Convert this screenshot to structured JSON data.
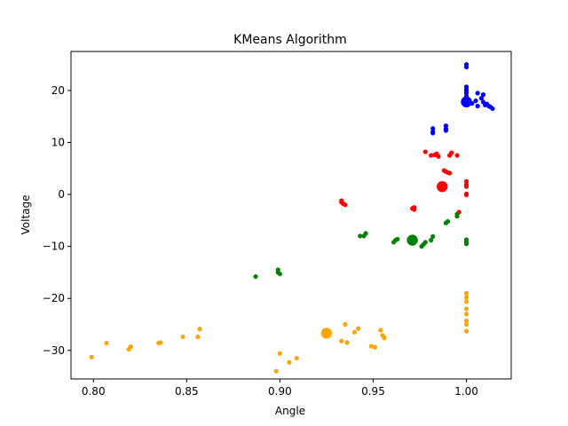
{
  "chart_data": {
    "type": "scatter",
    "title": "KMeans Algorithm",
    "xlabel": "Angle",
    "ylabel": "Voltage",
    "xlim": [
      0.788,
      1.024
    ],
    "ylim": [
      -35.5,
      27.5
    ],
    "xticks": [
      0.8,
      0.85,
      0.9,
      0.95,
      1.0
    ],
    "xtick_labels": [
      "0.80",
      "0.85",
      "0.90",
      "0.95",
      "1.00"
    ],
    "yticks": [
      -30,
      -20,
      -10,
      0,
      10,
      20
    ],
    "ytick_labels": [
      "−30",
      "−20",
      "−10",
      "0",
      "10",
      "20"
    ],
    "grid": false,
    "legend": "none",
    "series": [
      {
        "color": "#ff0000",
        "points": [
          [
            0.933,
            -1.5
          ],
          [
            0.934,
            -1.8
          ],
          [
            0.935,
            -2.0
          ],
          [
            0.933,
            -1.2
          ],
          [
            0.971,
            -2.7
          ],
          [
            0.972,
            -2.9
          ],
          [
            0.972,
            -2.5
          ],
          [
            0.978,
            8.2
          ],
          [
            0.981,
            7.5
          ],
          [
            0.983,
            7.6
          ],
          [
            0.984,
            7.8
          ],
          [
            0.985,
            7.3
          ],
          [
            0.988,
            4.6
          ],
          [
            0.989,
            4.4
          ],
          [
            0.99,
            4.2
          ],
          [
            0.991,
            7.5
          ],
          [
            0.992,
            8.0
          ],
          [
            0.991,
            4.1
          ],
          [
            0.995,
            7.5
          ],
          [
            0.996,
            -3.4
          ],
          [
            1.0,
            2.5
          ],
          [
            1.0,
            1.9
          ],
          [
            1.0,
            1.5
          ],
          [
            1.0,
            -0.1
          ],
          [
            1.0,
            0.1
          ]
        ],
        "centroid": [
          0.987,
          1.5
        ]
      },
      {
        "color": "#0000ff",
        "points": [
          [
            0.982,
            12.7
          ],
          [
            0.982,
            12.1
          ],
          [
            0.982,
            11.8
          ],
          [
            0.989,
            13.2
          ],
          [
            0.989,
            12.6
          ],
          [
            0.989,
            12.3
          ],
          [
            1.0,
            25.0
          ],
          [
            1.0,
            24.5
          ],
          [
            1.0,
            20.7
          ],
          [
            1.0,
            20.2
          ],
          [
            1.0,
            19.9
          ],
          [
            1.0,
            19.5
          ],
          [
            1.0,
            18.9
          ],
          [
            1.003,
            17.5
          ],
          [
            1.005,
            18.0
          ],
          [
            1.006,
            19.5
          ],
          [
            1.006,
            17.0
          ],
          [
            1.008,
            18.5
          ],
          [
            1.009,
            19.2
          ],
          [
            1.009,
            17.8
          ],
          [
            1.01,
            17.2
          ],
          [
            1.011,
            17.4
          ],
          [
            1.012,
            17.0
          ],
          [
            1.013,
            16.8
          ],
          [
            1.014,
            16.5
          ]
        ],
        "centroid": [
          1.0,
          17.8
        ]
      },
      {
        "color": "#008000",
        "points": [
          [
            0.887,
            -15.8
          ],
          [
            0.899,
            -14.5
          ],
          [
            0.899,
            -15.0
          ],
          [
            0.9,
            -15.3
          ],
          [
            0.943,
            -8.0
          ],
          [
            0.945,
            -8.0
          ],
          [
            0.946,
            -7.5
          ],
          [
            0.961,
            -9.2
          ],
          [
            0.962,
            -8.8
          ],
          [
            0.963,
            -8.6
          ],
          [
            0.976,
            -10.0
          ],
          [
            0.977,
            -9.6
          ],
          [
            0.978,
            -9.2
          ],
          [
            0.981,
            -8.8
          ],
          [
            0.982,
            -8.1
          ],
          [
            0.989,
            -5.5
          ],
          [
            0.99,
            -5.2
          ],
          [
            0.995,
            -4.2
          ],
          [
            0.995,
            -3.8
          ],
          [
            1.0,
            -9.5
          ],
          [
            1.0,
            -9.1
          ],
          [
            1.0,
            -8.7
          ]
        ],
        "centroid": [
          0.971,
          -8.8
        ]
      },
      {
        "color": "#ffa500",
        "points": [
          [
            0.799,
            -31.3
          ],
          [
            0.807,
            -28.6
          ],
          [
            0.819,
            -29.8
          ],
          [
            0.82,
            -29.3
          ],
          [
            0.835,
            -28.6
          ],
          [
            0.836,
            -28.5
          ],
          [
            0.848,
            -27.4
          ],
          [
            0.856,
            -27.4
          ],
          [
            0.857,
            -25.9
          ],
          [
            0.898,
            -34.0
          ],
          [
            0.9,
            -30.6
          ],
          [
            0.905,
            -32.3
          ],
          [
            0.909,
            -31.5
          ],
          [
            0.933,
            -28.2
          ],
          [
            0.935,
            -25.0
          ],
          [
            0.936,
            -28.5
          ],
          [
            0.94,
            -26.5
          ],
          [
            0.942,
            -25.8
          ],
          [
            0.949,
            -29.2
          ],
          [
            0.951,
            -29.4
          ],
          [
            0.954,
            -26.1
          ],
          [
            0.955,
            -27.1
          ],
          [
            0.956,
            -27.6
          ],
          [
            1.0,
            -19.0
          ],
          [
            1.0,
            -19.8
          ],
          [
            1.0,
            -20.6
          ],
          [
            1.0,
            -22.0
          ],
          [
            1.0,
            -23.0
          ],
          [
            1.0,
            -24.3
          ],
          [
            1.0,
            -25.0
          ],
          [
            1.0,
            -26.3
          ]
        ],
        "centroid": [
          0.925,
          -26.7
        ]
      }
    ]
  }
}
